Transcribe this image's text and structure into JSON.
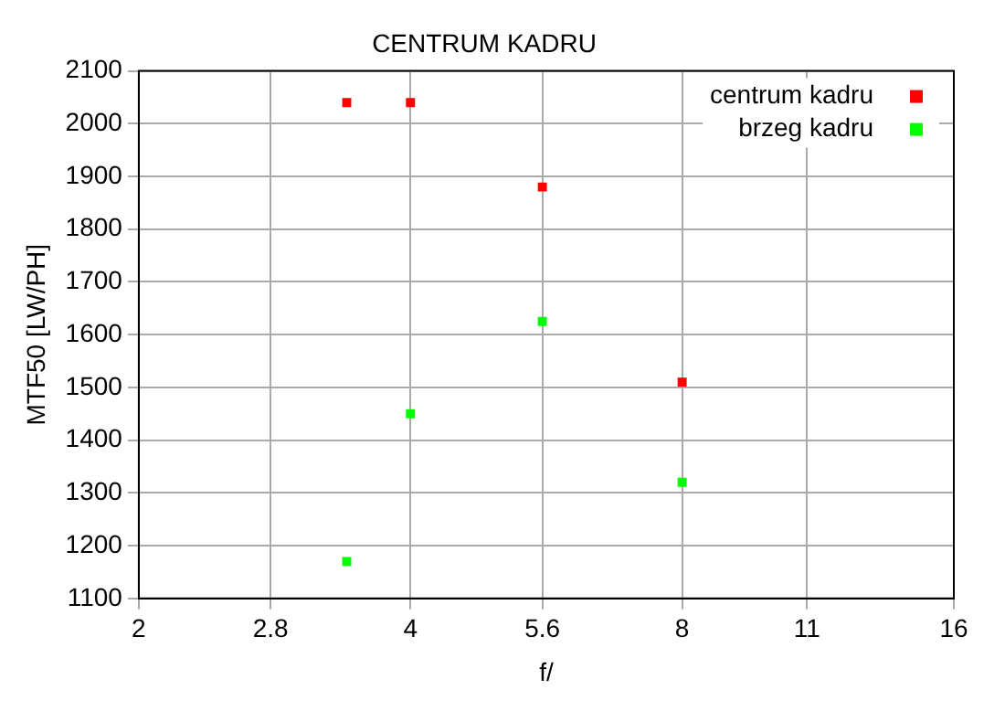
{
  "chart_data": {
    "type": "scatter",
    "title": "CENTRUM KADRU",
    "xlabel": "f/",
    "ylabel": "MTF50 [LW/PH]",
    "log": "x",
    "xlim": [
      2,
      16
    ],
    "xticks": [
      2,
      2.8,
      4,
      5.6,
      8,
      11,
      16
    ],
    "ylim": [
      1100,
      2100
    ],
    "yticks": [
      1100,
      1200,
      1300,
      1400,
      1500,
      1600,
      1700,
      1800,
      1900,
      2000,
      2100
    ],
    "grid": true,
    "legend": "top right",
    "marker": "square",
    "series": [
      {
        "name": "centrum kadru",
        "color": "#ff0000",
        "x": [
          3.4,
          4,
          5.6,
          8
        ],
        "values": [
          2040,
          2040,
          1880,
          1510
        ]
      },
      {
        "name": "brzeg kadru",
        "color": "#00ff00",
        "x": [
          3.4,
          4,
          5.6,
          8
        ],
        "values": [
          1170,
          1450,
          1625,
          1320
        ]
      }
    ]
  }
}
